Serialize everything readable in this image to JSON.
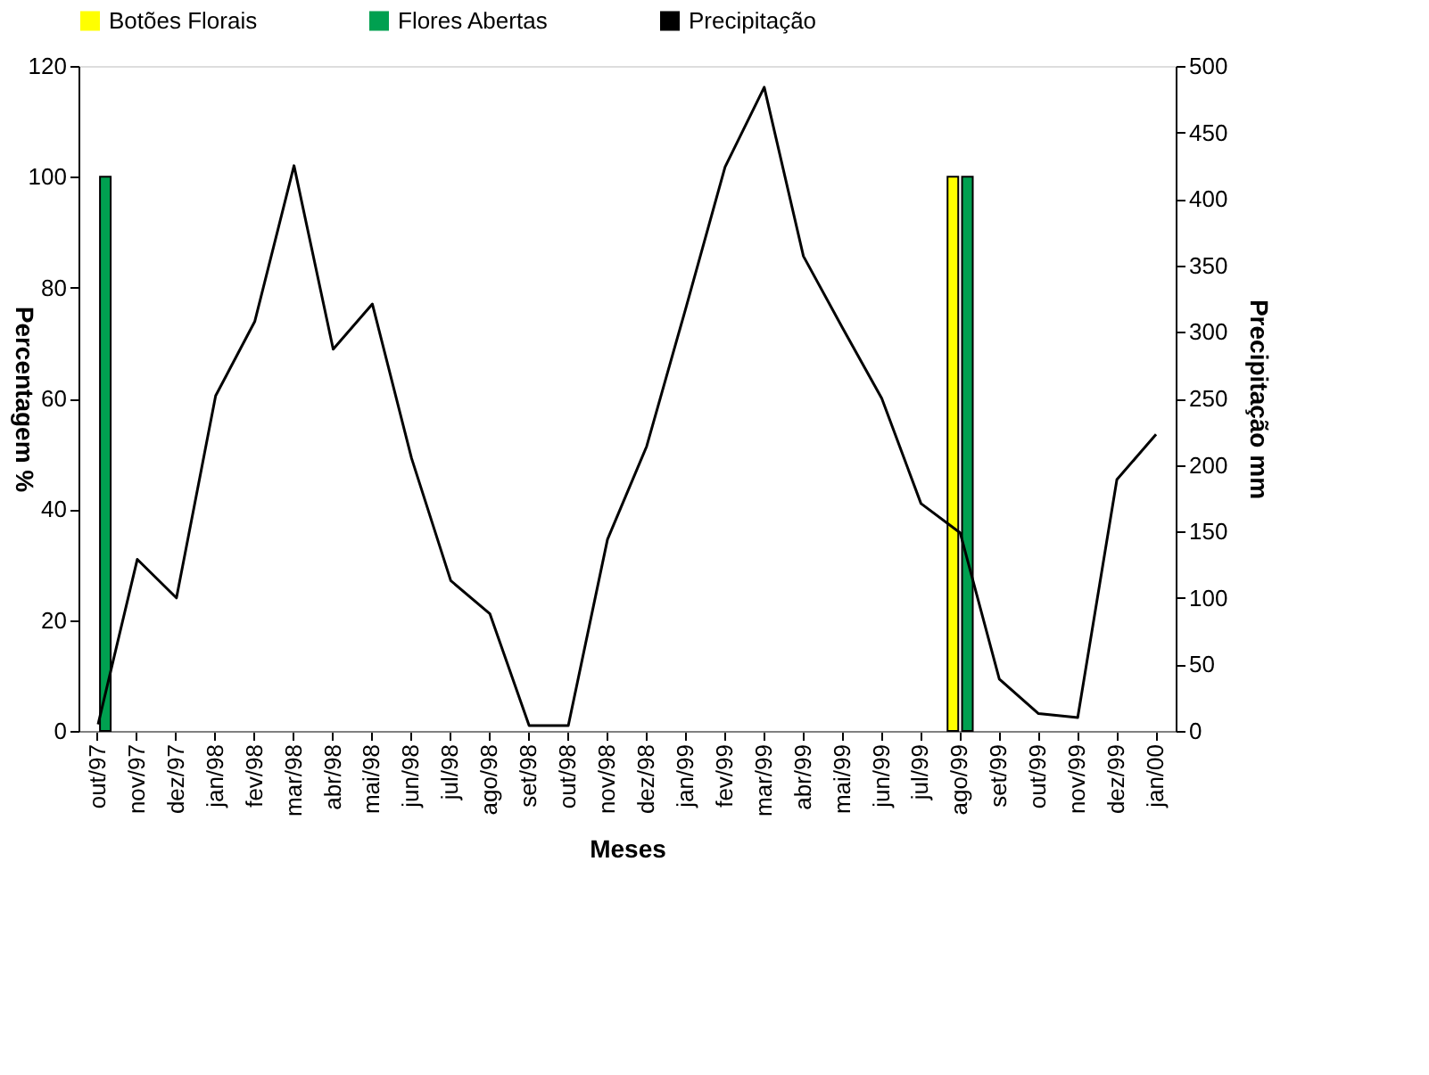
{
  "chart_data": {
    "type": "bar",
    "xlabel": "Meses",
    "ylabel": "Percentagem %",
    "y2label": "Precipitação mm",
    "categories": [
      "out/97",
      "nov/97",
      "dez/97",
      "jan/98",
      "fev/98",
      "mar/98",
      "abr/98",
      "mai/98",
      "jun/98",
      "jul/98",
      "ago/98",
      "set/98",
      "out/98",
      "nov/98",
      "dez/98",
      "jan/99",
      "fev/99",
      "mar/99",
      "abr/99",
      "mai/99",
      "jun/99",
      "jul/99",
      "ago/99",
      "set/99",
      "out/99",
      "nov/99",
      "dez/99",
      "jan/00"
    ],
    "series": [
      {
        "name": "Botões Florais",
        "color": "#ffff00",
        "values": [
          null,
          null,
          null,
          null,
          null,
          null,
          null,
          null,
          null,
          null,
          null,
          null,
          null,
          null,
          null,
          null,
          null,
          null,
          null,
          null,
          null,
          null,
          100,
          null,
          null,
          null,
          null,
          null
        ]
      },
      {
        "name": "Flores Abertas",
        "color": "#00a050",
        "values": [
          100,
          null,
          null,
          null,
          null,
          null,
          null,
          null,
          null,
          null,
          null,
          null,
          null,
          null,
          null,
          null,
          null,
          null,
          null,
          null,
          null,
          null,
          100,
          null,
          null,
          null,
          null,
          null
        ]
      },
      {
        "name": "Precipitação",
        "type": "line",
        "axis": "y2",
        "color": "#000000",
        "values": [
          5,
          129,
          100,
          252,
          308,
          425,
          287,
          321,
          205,
          113,
          88,
          4,
          4,
          144,
          214,
          318,
          424,
          484,
          357,
          303,
          250,
          171,
          149,
          39,
          13,
          10,
          189,
          223
        ]
      }
    ],
    "ylim": [
      0,
      120
    ],
    "yticks": [
      0,
      20,
      40,
      60,
      80,
      100,
      120
    ],
    "y2lim": [
      0,
      500
    ],
    "y2ticks": [
      0,
      50,
      100,
      150,
      200,
      250,
      300,
      350,
      400,
      450,
      500
    ],
    "legend": "top",
    "grid": false,
    "marker": "none",
    "line_style": "solid"
  }
}
